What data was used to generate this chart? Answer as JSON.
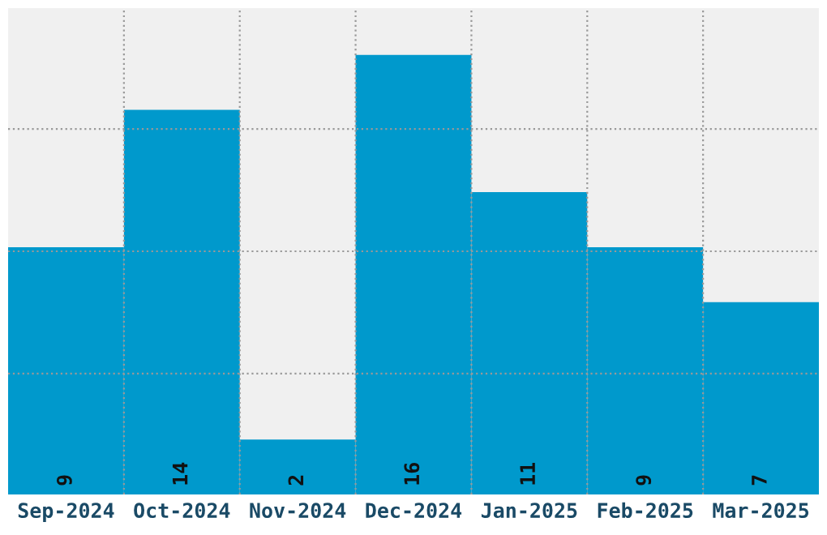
{
  "chart_data": {
    "type": "bar",
    "categories": [
      "Sep-2024",
      "Oct-2024",
      "Nov-2024",
      "Dec-2024",
      "Jan-2025",
      "Feb-2025",
      "Mar-2025"
    ],
    "values": [
      9,
      14,
      2,
      16,
      11,
      9,
      7
    ],
    "color": "#0099cc",
    "data_labels": true,
    "grid": true,
    "ylim": [
      0,
      17.7
    ],
    "yticks": [
      {
        "value": 4.4,
        "label": null
      },
      {
        "value": 8.85,
        "label": null
      },
      {
        "value": 13.3,
        "label": null
      }
    ],
    "tick_labels": "x"
  }
}
